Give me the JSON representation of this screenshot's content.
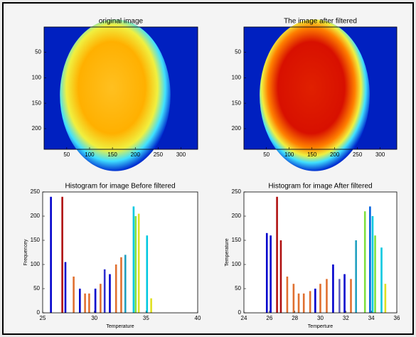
{
  "chart_data": [
    {
      "type": "image",
      "title": "original image",
      "palette": "original",
      "xlim": [
        0.5,
        336.5
      ],
      "ylim": [
        0.5,
        240.5
      ],
      "xticks": [
        50,
        100,
        150,
        200,
        250,
        300
      ],
      "yticks": [
        50,
        100,
        150,
        200
      ]
    },
    {
      "type": "image",
      "title": "The image after filtered",
      "palette": "filtered",
      "xlim": [
        0.5,
        336.5
      ],
      "ylim": [
        0.5,
        240.5
      ],
      "xticks": [
        50,
        100,
        150,
        200,
        250,
        300
      ],
      "yticks": [
        50,
        100,
        150,
        200
      ]
    },
    {
      "type": "bar",
      "title": "Histogram for image Before  filtered",
      "x_label": "Temperature",
      "y_label": "Frequencey",
      "xlim": [
        25,
        40
      ],
      "ylim": [
        0,
        250
      ],
      "xticks": [
        25,
        30,
        35,
        40
      ],
      "yticks": [
        0,
        50,
        100,
        150,
        200,
        250
      ],
      "x": [
        25.8,
        26.9,
        27.2,
        28.0,
        28.6,
        29.1,
        29.5,
        30.1,
        30.6,
        31.0,
        31.5,
        32.1,
        32.6,
        33.0,
        33.8,
        34.0,
        34.3,
        35.1,
        35.5
      ],
      "values": [
        240,
        240,
        105,
        75,
        50,
        40,
        40,
        50,
        60,
        90,
        80,
        100,
        115,
        120,
        220,
        200,
        205,
        160,
        30
      ],
      "colors": [
        "#0000cc",
        "#b01010",
        "#0000cc",
        "#e07030",
        "#0000cc",
        "#e07030",
        "#e07030",
        "#0000cc",
        "#e07030",
        "#3030d0",
        "#0000cc",
        "#e07030",
        "#e07030",
        "#20a0c0",
        "#00c8e0",
        "#80e040",
        "#e0e020",
        "#00c8e0",
        "#e0e020"
      ]
    },
    {
      "type": "bar",
      "title": "Histogram for image After  filtered",
      "x_label": "Temperture",
      "y_label": "Temperature",
      "xlim": [
        24,
        36
      ],
      "ylim": [
        0,
        250
      ],
      "xticks": [
        24,
        26,
        28,
        30,
        32,
        34,
        36
      ],
      "yticks": [
        0,
        50,
        100,
        150,
        200,
        250
      ],
      "x": [
        25.8,
        26.1,
        26.6,
        26.9,
        27.4,
        27.9,
        28.3,
        28.7,
        29.2,
        29.6,
        30.0,
        30.5,
        31.0,
        31.5,
        31.9,
        32.4,
        32.8,
        33.5,
        33.9,
        34.1,
        34.3,
        34.8,
        35.1
      ],
      "values": [
        165,
        160,
        240,
        150,
        75,
        60,
        40,
        40,
        45,
        50,
        60,
        70,
        100,
        70,
        80,
        70,
        150,
        210,
        220,
        200,
        160,
        135,
        60
      ],
      "colors": [
        "#0000cc",
        "#0000cc",
        "#b01010",
        "#b01010",
        "#e07030",
        "#e07030",
        "#e07030",
        "#e07030",
        "#e07030",
        "#0000cc",
        "#e07030",
        "#e07030",
        "#0000cc",
        "#6060c0",
        "#0000cc",
        "#e07030",
        "#20a0c0",
        "#80e040",
        "#0060e0",
        "#00c8e0",
        "#80e040",
        "#00c8e0",
        "#e0e020"
      ]
    }
  ]
}
